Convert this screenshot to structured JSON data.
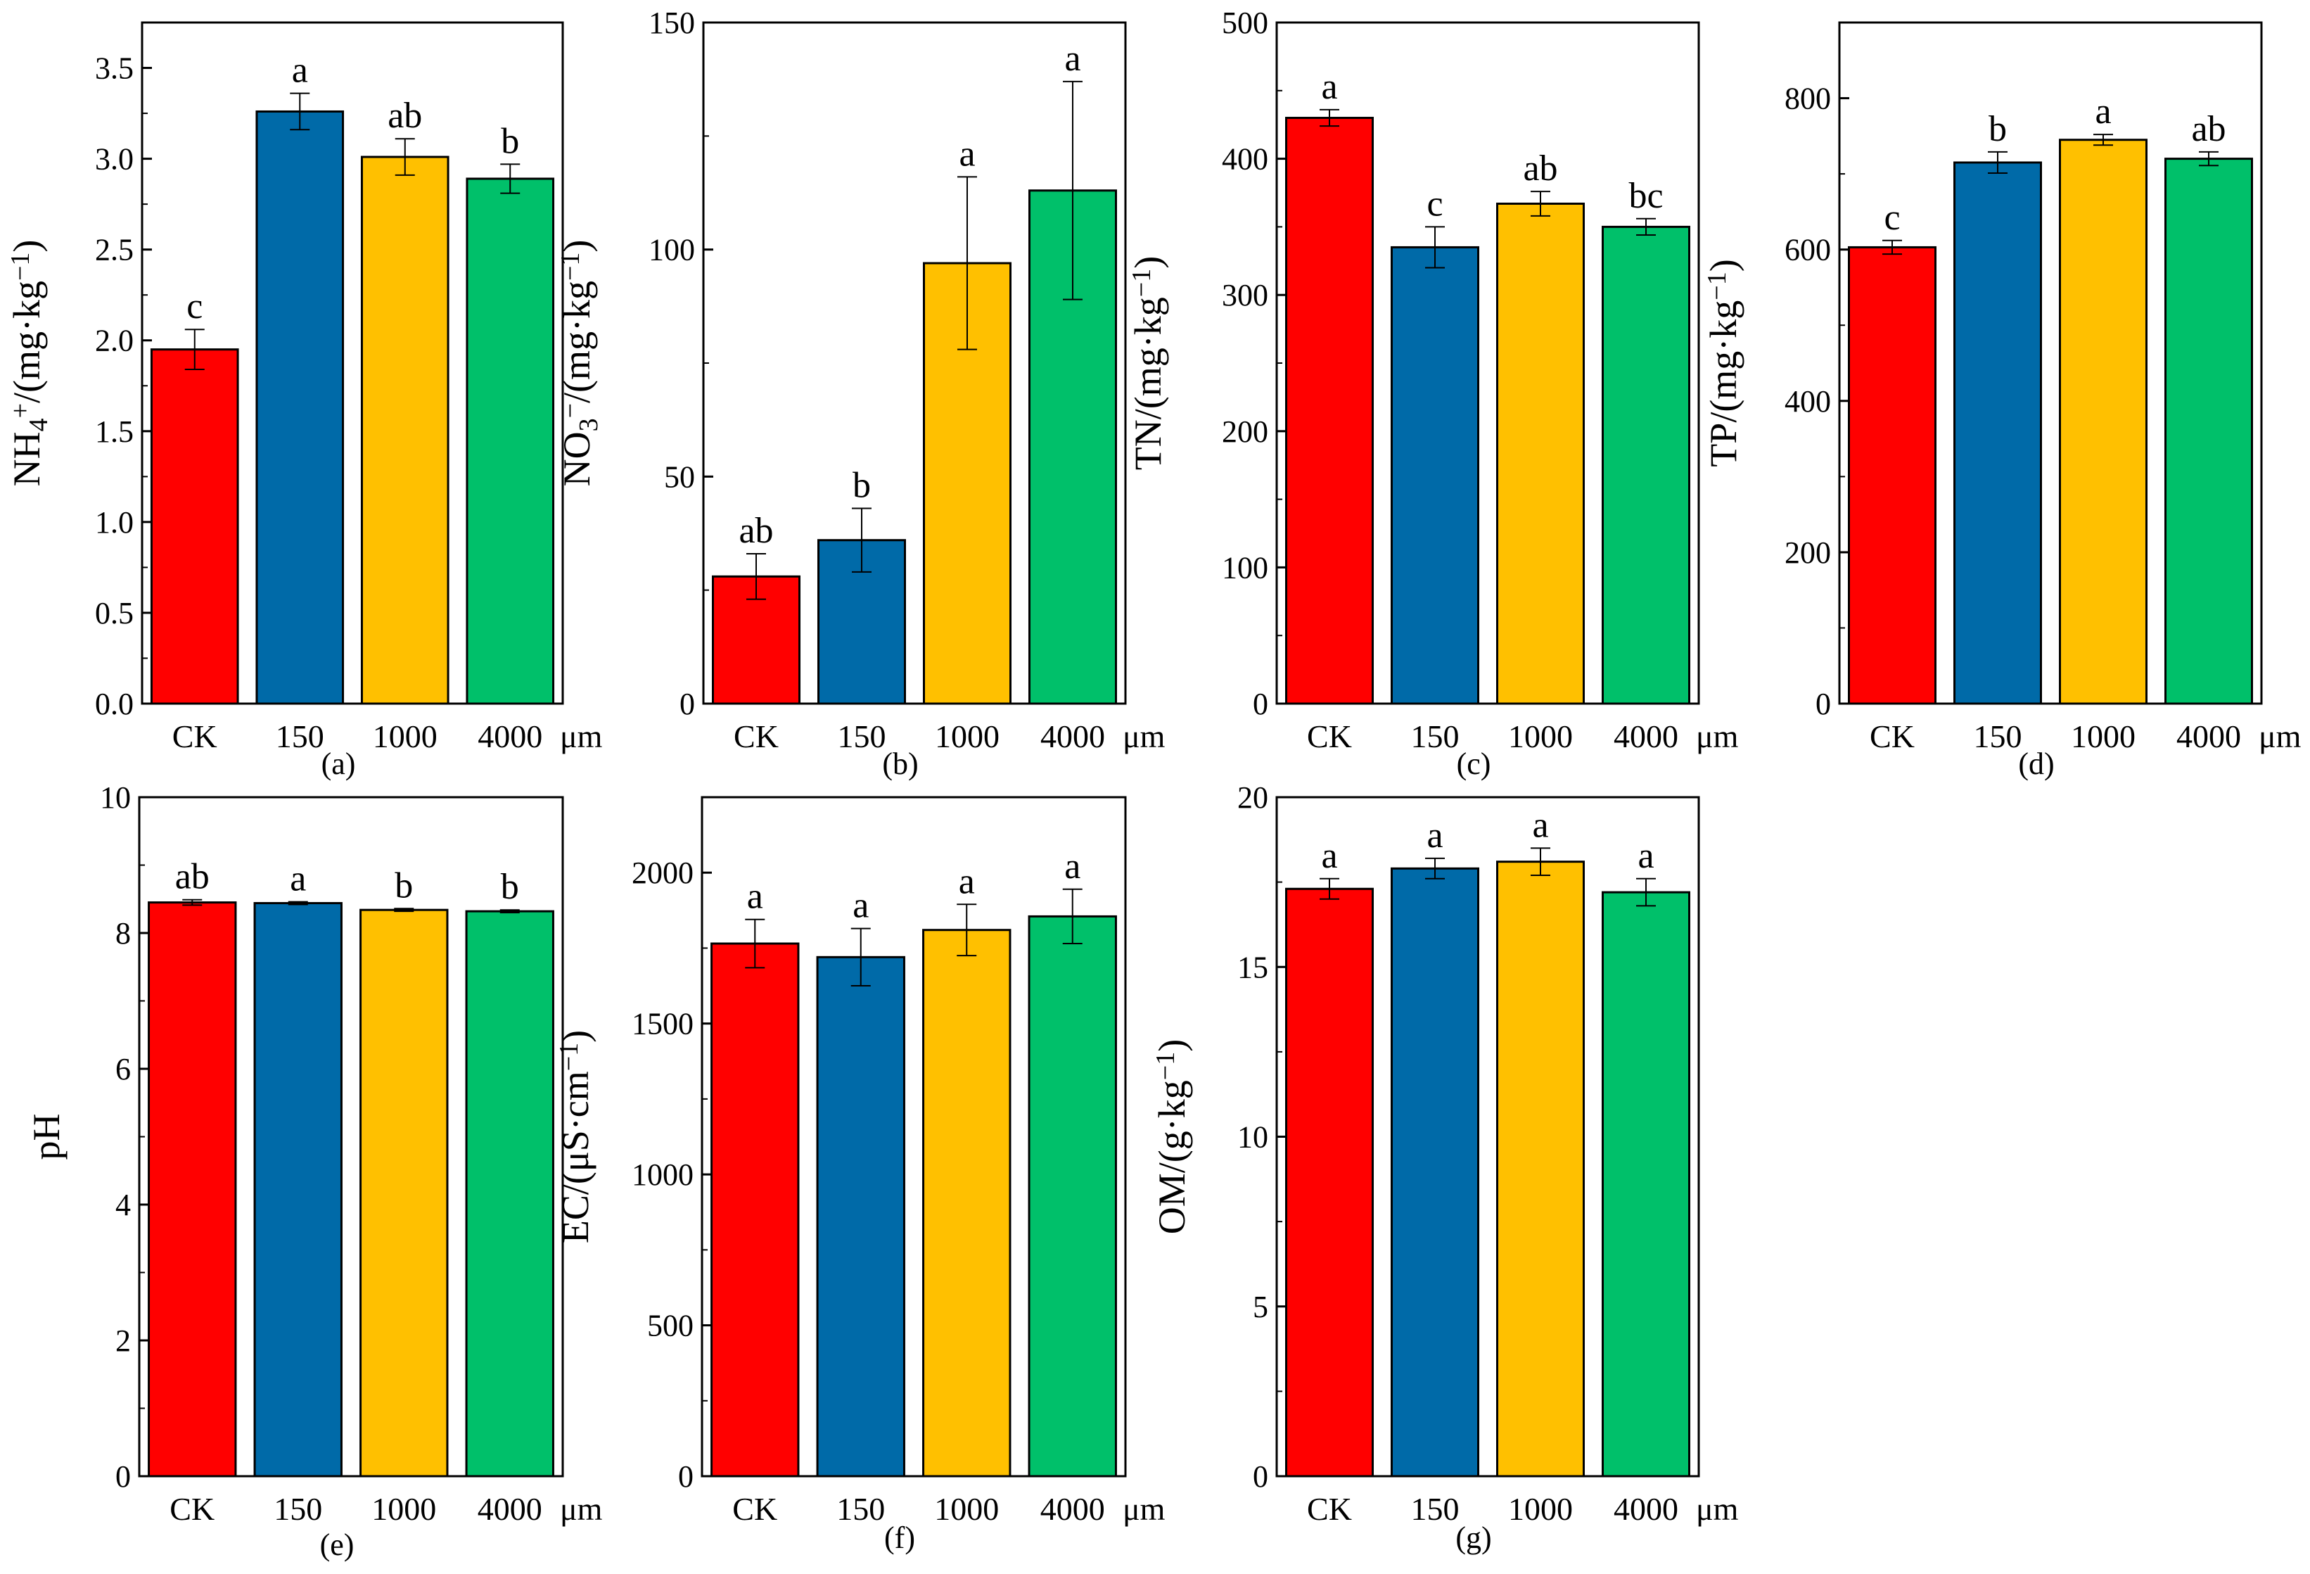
{
  "chart_data": [
    {
      "type": "bar",
      "panel_label": "(a)",
      "ylabel_parts": {
        "main": "NH",
        "sub": "4",
        "sup": "+",
        "rest": "/(mg·kg",
        "rest_sup": "−1",
        "close": ")"
      },
      "categories": [
        "CK",
        "150",
        "1000",
        "4000"
      ],
      "unit": "μm",
      "values": [
        1.95,
        3.26,
        3.01,
        2.89
      ],
      "errors": [
        0.11,
        0.1,
        0.1,
        0.08
      ],
      "significance": [
        "c",
        "a",
        "ab",
        "b"
      ],
      "ylim": [
        0,
        3.75
      ],
      "yticks": [
        0.0,
        0.5,
        1.0,
        1.5,
        2.0,
        2.5,
        3.0,
        3.5
      ],
      "ytick_labels": [
        "0.0",
        "0.5",
        "1.0",
        "1.5",
        "2.0",
        "2.5",
        "3.0",
        "3.5"
      ]
    },
    {
      "type": "bar",
      "panel_label": "(b)",
      "ylabel_parts": {
        "main": "NO",
        "sub": "3",
        "sup": "−",
        "rest": "/(mg·kg",
        "rest_sup": "−1",
        "close": ")"
      },
      "categories": [
        "CK",
        "150",
        "1000",
        "4000"
      ],
      "unit": "μm",
      "values": [
        28,
        36,
        97,
        113
      ],
      "errors": [
        5,
        7,
        19,
        24
      ],
      "significance": [
        "ab",
        "b",
        "a",
        "a"
      ],
      "ylim": [
        0,
        150
      ],
      "yticks": [
        0,
        50,
        100,
        150
      ],
      "ytick_labels": [
        "0",
        "50",
        "100",
        "150"
      ]
    },
    {
      "type": "bar",
      "panel_label": "(c)",
      "ylabel_parts": {
        "main": "TN/(mg·kg",
        "sub": "",
        "sup": "−1",
        "rest": ")",
        "rest_sup": "",
        "close": ""
      },
      "categories": [
        "CK",
        "150",
        "1000",
        "4000"
      ],
      "unit": "μm",
      "values": [
        430,
        335,
        367,
        350
      ],
      "errors": [
        6,
        15,
        9,
        6
      ],
      "significance": [
        "a",
        "c",
        "ab",
        "bc"
      ],
      "ylim": [
        0,
        500
      ],
      "yticks": [
        0,
        100,
        200,
        300,
        400,
        500
      ],
      "ytick_labels": [
        "0",
        "100",
        "200",
        "300",
        "400",
        "500"
      ]
    },
    {
      "type": "bar",
      "panel_label": "(d)",
      "ylabel_parts": {
        "main": "TP/(mg·kg",
        "sub": "",
        "sup": "−1",
        "rest": ")",
        "rest_sup": "",
        "close": ""
      },
      "categories": [
        "CK",
        "150",
        "1000",
        "4000"
      ],
      "unit": "μm",
      "values": [
        603,
        715,
        745,
        720
      ],
      "errors": [
        9,
        14,
        7,
        9
      ],
      "significance": [
        "c",
        "b",
        "a",
        "ab"
      ],
      "ylim": [
        0,
        900
      ],
      "yticks": [
        0,
        200,
        400,
        600,
        800
      ],
      "ytick_labels": [
        "0",
        "200",
        "400",
        "600",
        "800"
      ]
    },
    {
      "type": "bar",
      "panel_label": "(e)",
      "ylabel_parts": {
        "main": "pH",
        "sub": "",
        "sup": "",
        "rest": "",
        "rest_sup": "",
        "close": ""
      },
      "categories": [
        "CK",
        "150",
        "1000",
        "4000"
      ],
      "unit": "μm",
      "values": [
        8.45,
        8.44,
        8.34,
        8.32
      ],
      "errors": [
        0.04,
        0.02,
        0.02,
        0.02
      ],
      "significance": [
        "ab",
        "a",
        "b",
        "b"
      ],
      "ylim": [
        0,
        10
      ],
      "yticks": [
        0,
        2,
        4,
        6,
        8,
        10
      ],
      "ytick_labels": [
        "0",
        "2",
        "4",
        "6",
        "8",
        "10"
      ]
    },
    {
      "type": "bar",
      "panel_label": "(f)",
      "ylabel_parts": {
        "main": "EC/(μS·cm",
        "sub": "",
        "sup": "−1",
        "rest": ")",
        "rest_sup": "",
        "close": ""
      },
      "categories": [
        "CK",
        "150",
        "1000",
        "4000"
      ],
      "unit": "μm",
      "values": [
        1765,
        1720,
        1810,
        1855
      ],
      "errors": [
        80,
        95,
        85,
        90
      ],
      "significance": [
        "a",
        "a",
        "a",
        "a"
      ],
      "ylim": [
        0,
        2250
      ],
      "yticks": [
        0,
        500,
        1000,
        1500,
        2000
      ],
      "ytick_labels": [
        "0",
        "500",
        "1000",
        "1500",
        "2000"
      ]
    },
    {
      "type": "bar",
      "panel_label": "(g)",
      "ylabel_parts": {
        "main": "OM/(g·kg",
        "sub": "",
        "sup": "−1",
        "rest": ")",
        "rest_sup": "",
        "close": ""
      },
      "categories": [
        "CK",
        "150",
        "1000",
        "4000"
      ],
      "unit": "μm",
      "values": [
        17.3,
        17.9,
        18.1,
        17.2
      ],
      "errors": [
        0.3,
        0.3,
        0.4,
        0.4
      ],
      "significance": [
        "a",
        "a",
        "a",
        "a"
      ],
      "ylim": [
        0,
        20
      ],
      "yticks": [
        0,
        5,
        10,
        15,
        20
      ],
      "ytick_labels": [
        "0",
        "5",
        "10",
        "15",
        "20"
      ]
    }
  ],
  "colors": {
    "bars": [
      "#ff0000",
      "#006aa8",
      "#ffc000",
      "#00c06a"
    ],
    "axis": "#000000"
  }
}
